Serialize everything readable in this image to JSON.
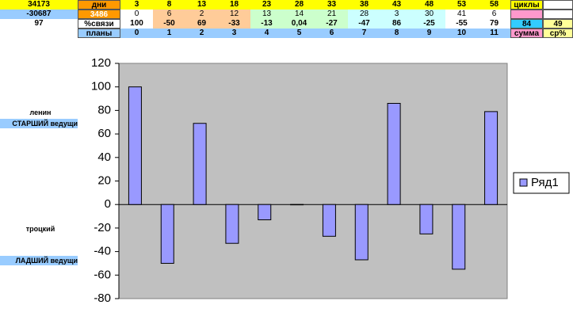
{
  "table": {
    "rows": [
      [
        34173,
        "дни",
        3,
        8,
        13,
        18,
        23,
        28,
        33,
        38,
        43,
        48,
        53,
        58,
        "циклы",
        null
      ],
      [
        -30687,
        3486,
        0,
        6,
        2,
        12,
        13,
        14,
        21,
        28,
        3,
        30,
        41,
        6,
        null,
        null
      ],
      [
        97,
        "%связи",
        100,
        -50,
        69,
        -33,
        -13,
        "0,04",
        -27,
        -47,
        86,
        -25,
        -55,
        79,
        84,
        49
      ],
      [
        null,
        "планы",
        0,
        1,
        2,
        3,
        4,
        5,
        6,
        7,
        8,
        9,
        10,
        11,
        "сумма",
        "ср%"
      ]
    ]
  },
  "side_labels": {
    "leader": "ленин",
    "leader_role": "СТАРШИЙ ведущи",
    "deputy": "троцкий",
    "deputy_role": "ЛАДШИЙ ведущи"
  },
  "chart_data": {
    "type": "bar",
    "categories": [
      null,
      null,
      null,
      null,
      null,
      null,
      null,
      null,
      null,
      null,
      null,
      null
    ],
    "series": [
      {
        "name": "Ряд1",
        "color": "#9999ff",
        "values": [
          100,
          -50,
          69,
          -33,
          -13,
          0.04,
          -27,
          -47,
          86,
          -25,
          -55,
          79
        ]
      }
    ],
    "ylim": [
      -80,
      120
    ],
    "yticks": [
      -80,
      -60,
      -40,
      -20,
      0,
      20,
      40,
      60,
      80,
      100,
      120
    ],
    "grid": false,
    "legend": "right"
  }
}
